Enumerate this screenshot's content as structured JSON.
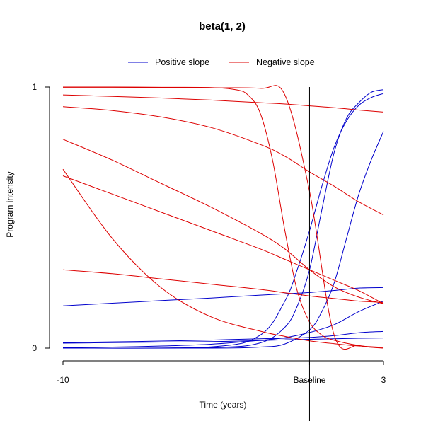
{
  "chart_data": {
    "type": "line",
    "title": "beta(1, 2)",
    "xlabel": "Time (years)",
    "ylabel": "Program intensity",
    "xlim": [
      -10,
      3
    ],
    "ylim": [
      0,
      1
    ],
    "x_ticks": [
      {
        "value": -10,
        "label": "-10"
      },
      {
        "value": 0,
        "label": "Baseline"
      },
      {
        "value": 3,
        "label": "3"
      }
    ],
    "y_ticks": [
      {
        "value": 0,
        "label": "0"
      },
      {
        "value": 1,
        "label": "1"
      }
    ],
    "baseline_x": 0,
    "grid": false,
    "legend": {
      "placement": "top",
      "entries": [
        {
          "label": "Positive slope",
          "color": "#0000CC"
        },
        {
          "label": "Negative slope",
          "color": "#DD0000"
        }
      ]
    },
    "series": [
      {
        "group": "positive",
        "x": [
          -10,
          -8,
          -6,
          -4,
          -2,
          -1,
          0,
          1,
          2,
          3
        ],
        "y": [
          0.162,
          0.172,
          0.182,
          0.192,
          0.203,
          0.208,
          0.213,
          0.221,
          0.23,
          0.232
        ]
      },
      {
        "group": "positive",
        "x": [
          -10,
          -8,
          -6,
          -4,
          -2,
          -1,
          0,
          1,
          2,
          3
        ],
        "y": [
          0.021,
          0.024,
          0.027,
          0.031,
          0.036,
          0.038,
          0.041,
          0.048,
          0.059,
          0.064
        ]
      },
      {
        "group": "positive",
        "x": [
          -10,
          -8,
          -6,
          -4,
          -2,
          -1,
          0,
          1,
          2,
          3
        ],
        "y": [
          0.019,
          0.021,
          0.023,
          0.025,
          0.029,
          0.032,
          0.034,
          0.036,
          0.038,
          0.039
        ]
      },
      {
        "group": "positive",
        "x": [
          -10,
          -8,
          -6,
          -4,
          -2,
          -1,
          0,
          1,
          2,
          3
        ],
        "y": [
          0.002,
          0.004,
          0.008,
          0.015,
          0.03,
          0.04,
          0.06,
          0.09,
          0.14,
          0.18
        ]
      },
      {
        "group": "positive",
        "x": [
          -10,
          -4,
          -2,
          -1,
          -0.5,
          0,
          0.5,
          1,
          1.5,
          2,
          2.5,
          3
        ],
        "y": [
          0.0,
          0.005,
          0.05,
          0.18,
          0.3,
          0.45,
          0.62,
          0.77,
          0.87,
          0.93,
          0.96,
          0.975
        ]
      },
      {
        "group": "positive",
        "x": [
          -10,
          -4,
          -2,
          -1,
          -0.5,
          0,
          0.5,
          1,
          1.5,
          2,
          2.5,
          3
        ],
        "y": [
          0.0,
          0.002,
          0.02,
          0.08,
          0.16,
          0.3,
          0.53,
          0.75,
          0.88,
          0.94,
          0.98,
          0.99
        ]
      },
      {
        "group": "positive",
        "x": [
          -10,
          -4,
          -2,
          -1,
          0,
          0.5,
          1,
          1.5,
          2,
          2.5,
          3
        ],
        "y": [
          0.0,
          0.0,
          0.004,
          0.016,
          0.07,
          0.14,
          0.25,
          0.42,
          0.59,
          0.72,
          0.83
        ]
      },
      {
        "group": "negative",
        "x": [
          -10,
          -8,
          -6,
          -4,
          -2,
          -1,
          0,
          1,
          2,
          3
        ],
        "y": [
          0.999,
          0.999,
          0.998,
          0.997,
          0.995,
          0.97,
          0.6,
          0.05,
          0.01,
          0.0
        ]
      },
      {
        "group": "negative",
        "x": [
          -10,
          -8,
          -6,
          -4,
          -3,
          -2.5,
          -2,
          -1.5,
          -1,
          -0.5,
          0,
          0.5,
          1,
          2,
          3
        ],
        "y": [
          1.0,
          1.0,
          0.999,
          0.998,
          0.99,
          0.97,
          0.9,
          0.72,
          0.45,
          0.22,
          0.1,
          0.05,
          0.03,
          0.01,
          0.0
        ]
      },
      {
        "group": "negative",
        "x": [
          -10,
          -8,
          -6,
          -4,
          -2,
          -1,
          0,
          1,
          2,
          3
        ],
        "y": [
          0.97,
          0.964,
          0.958,
          0.95,
          0.94,
          0.935,
          0.928,
          0.921,
          0.912,
          0.904
        ]
      },
      {
        "group": "negative",
        "x": [
          -10,
          -8,
          -6,
          -4,
          -2,
          -1,
          0,
          1,
          2,
          3
        ],
        "y": [
          0.925,
          0.91,
          0.885,
          0.845,
          0.78,
          0.735,
          0.675,
          0.62,
          0.56,
          0.51
        ]
      },
      {
        "group": "negative",
        "x": [
          -10,
          -8,
          -6,
          -4,
          -2,
          -1,
          0,
          1,
          2,
          3
        ],
        "y": [
          0.8,
          0.72,
          0.63,
          0.54,
          0.44,
          0.38,
          0.3,
          0.235,
          0.195,
          0.17
        ]
      },
      {
        "group": "negative",
        "x": [
          -10,
          -8,
          -6,
          -4,
          -2,
          -1,
          0,
          1,
          2,
          3
        ],
        "y": [
          0.66,
          0.59,
          0.52,
          0.45,
          0.38,
          0.34,
          0.3,
          0.26,
          0.22,
          0.17
        ]
      },
      {
        "group": "negative",
        "x": [
          -10,
          -8,
          -6,
          -4,
          -2,
          -1,
          0,
          1,
          2,
          3
        ],
        "y": [
          0.685,
          0.42,
          0.23,
          0.12,
          0.065,
          0.045,
          0.028,
          0.017,
          0.008,
          0.003
        ]
      },
      {
        "group": "negative",
        "x": [
          -10,
          -8,
          -6,
          -4,
          -2,
          -1,
          0,
          1,
          2,
          3
        ],
        "y": [
          0.3,
          0.285,
          0.265,
          0.245,
          0.225,
          0.212,
          0.2,
          0.19,
          0.18,
          0.175
        ]
      }
    ]
  }
}
